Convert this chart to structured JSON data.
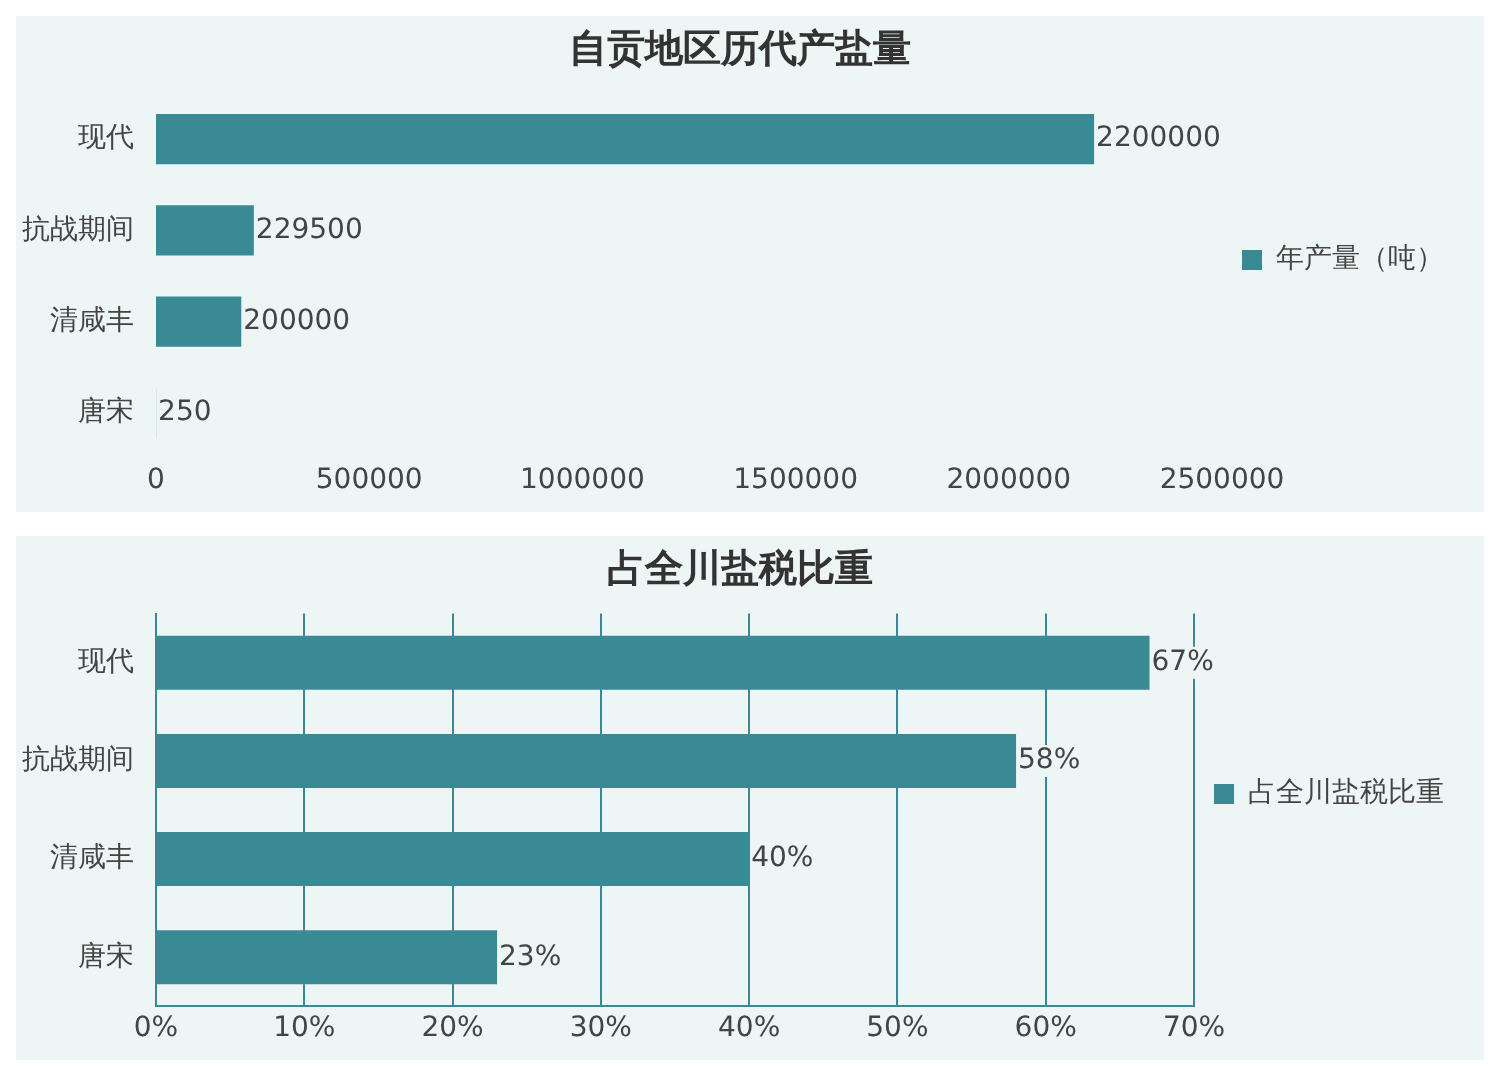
{
  "chart_data": [
    {
      "type": "bar",
      "orientation": "horizontal",
      "title": "自贡地区历代产盐量",
      "categories": [
        "现代",
        "抗战期间",
        "清咸丰",
        "唐宋"
      ],
      "series": [
        {
          "name": "年产量（吨）",
          "color": "#3a8a96",
          "values": [
            2200000,
            229500,
            200000,
            250
          ]
        }
      ],
      "xlim": [
        0,
        2500000
      ],
      "xticks": [
        0,
        500000,
        1000000,
        1500000,
        2000000,
        2500000
      ],
      "grid": false,
      "legend": "right",
      "data_labels": true
    },
    {
      "type": "bar",
      "orientation": "horizontal",
      "title": "占全川盐税比重",
      "categories": [
        "现代",
        "抗战期间",
        "清咸丰",
        "唐宋"
      ],
      "series": [
        {
          "name": "占全川盐税比重",
          "color": "#3a8a96",
          "values": [
            67,
            58,
            40,
            23
          ],
          "value_labels": [
            "67%",
            "58%",
            "40%",
            "23%"
          ]
        }
      ],
      "xlim": [
        0,
        70
      ],
      "xticks": [
        {
          "value": 0,
          "label": "0%"
        },
        {
          "value": 10,
          "label": "10%"
        },
        {
          "value": 20,
          "label": "20%"
        },
        {
          "value": 30,
          "label": "30%"
        },
        {
          "value": 40,
          "label": "40%"
        },
        {
          "value": 50,
          "label": "50%"
        },
        {
          "value": 60,
          "label": "60%"
        },
        {
          "value": 70,
          "label": "70%"
        }
      ],
      "grid": true,
      "legend": "right"
    }
  ]
}
